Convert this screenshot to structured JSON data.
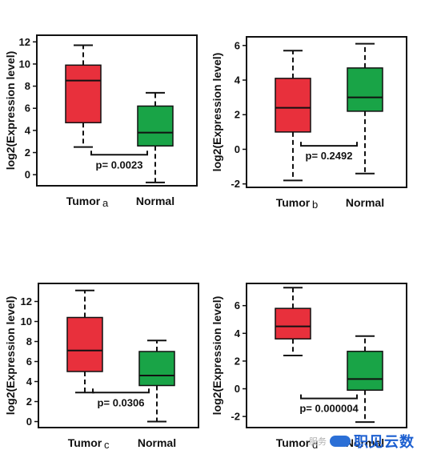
{
  "chart_data": [
    {
      "type": "box",
      "ylabel": "log2(Expression level)",
      "ylim": [
        -1,
        12.6
      ],
      "yticks": [
        0,
        2,
        4,
        6,
        8,
        10,
        12
      ],
      "categories": [
        "Tumor",
        "Normal"
      ],
      "subscript": "a",
      "boxes": [
        {
          "category": "Tumor",
          "min": 2.5,
          "q1": 4.7,
          "median": 8.5,
          "q3": 9.9,
          "max": 11.7,
          "color": "#e8303c"
        },
        {
          "category": "Normal",
          "min": -0.7,
          "q1": 2.6,
          "median": 3.8,
          "q3": 6.2,
          "max": 7.4,
          "color": "#19a447"
        }
      ],
      "annotation": "p= 0.0023",
      "bracket_y": 1.8
    },
    {
      "type": "box",
      "ylabel": "log2(Expression level)",
      "ylim": [
        -2.2,
        6.5
      ],
      "yticks": [
        -2,
        0,
        2,
        4,
        6
      ],
      "categories": [
        "Tumor",
        "Normal"
      ],
      "subscript": "b",
      "boxes": [
        {
          "category": "Tumor",
          "min": -1.8,
          "q1": 1.0,
          "median": 2.4,
          "q3": 4.1,
          "max": 5.7,
          "color": "#e8303c"
        },
        {
          "category": "Normal",
          "min": -1.4,
          "q1": 2.2,
          "median": 3.0,
          "q3": 4.7,
          "max": 6.1,
          "color": "#19a447"
        }
      ],
      "annotation": "p= 0.2492",
      "bracket_y": 0.2
    },
    {
      "type": "box",
      "ylabel": "log2(Expression level)",
      "ylim": [
        -0.6,
        13.8
      ],
      "yticks": [
        0,
        2,
        4,
        6,
        8,
        10,
        12
      ],
      "categories": [
        "Tumor",
        "Normal"
      ],
      "subscript": "c",
      "boxes": [
        {
          "category": "Tumor",
          "min": 2.9,
          "q1": 5.0,
          "median": 7.1,
          "q3": 10.4,
          "max": 13.1,
          "color": "#e8303c"
        },
        {
          "category": "Normal",
          "min": 0.0,
          "q1": 3.6,
          "median": 4.6,
          "q3": 7.0,
          "max": 8.1,
          "color": "#19a447"
        }
      ],
      "annotation": "p= 0.0306",
      "bracket_y": 2.9
    },
    {
      "type": "box",
      "ylabel": "log2(Expression level)",
      "ylim": [
        -2.8,
        7.6
      ],
      "yticks": [
        -2,
        0,
        2,
        4,
        6
      ],
      "categories": [
        "Tumor",
        "Normal"
      ],
      "subscript": "d",
      "boxes": [
        {
          "category": "Tumor",
          "min": 2.4,
          "q1": 3.6,
          "median": 4.5,
          "q3": 5.8,
          "max": 7.3,
          "color": "#e8303c"
        },
        {
          "category": "Normal",
          "min": -2.4,
          "q1": -0.1,
          "median": 0.7,
          "q3": 2.7,
          "max": 3.8,
          "color": "#19a447"
        }
      ],
      "annotation": "p= 0.000004",
      "bracket_y": -0.7
    }
  ],
  "watermark": {
    "faint": "服务",
    "brand": "职见云数"
  }
}
